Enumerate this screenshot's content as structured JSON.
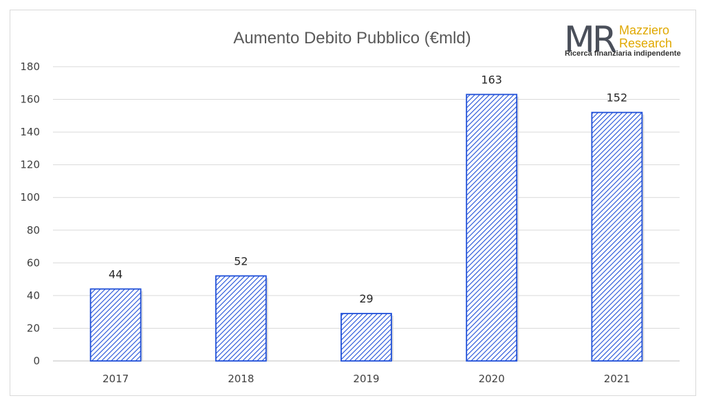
{
  "chart_data": {
    "type": "bar",
    "title": "Aumento Debito Pubblico (€mld)",
    "categories": [
      "2017",
      "2018",
      "2019",
      "2020",
      "2021"
    ],
    "values": [
      44,
      52,
      29,
      163,
      152
    ],
    "data_labels": [
      "44",
      "52",
      "29",
      "163",
      "152"
    ],
    "ylim": [
      0,
      180
    ],
    "yticks": [
      "0",
      "20",
      "40",
      "60",
      "80",
      "100",
      "120",
      "140",
      "160",
      "180"
    ],
    "grid": true,
    "legend": "none",
    "bar_style": "diagonal-hatch",
    "colors": {
      "bar_outline": "#1f4fd8",
      "bar_hatch": "#1f4fd8",
      "gridline": "#d9d9d9",
      "axis": "#bfbfbf"
    }
  },
  "logo": {
    "mark": "MR",
    "line1": "Mazziero",
    "line2": "Research",
    "tagline": "Ricerca finanziaria indipendente",
    "colors": {
      "mark": "#4a4f5a",
      "name": "#e0a800",
      "tagline": "#333333"
    }
  }
}
